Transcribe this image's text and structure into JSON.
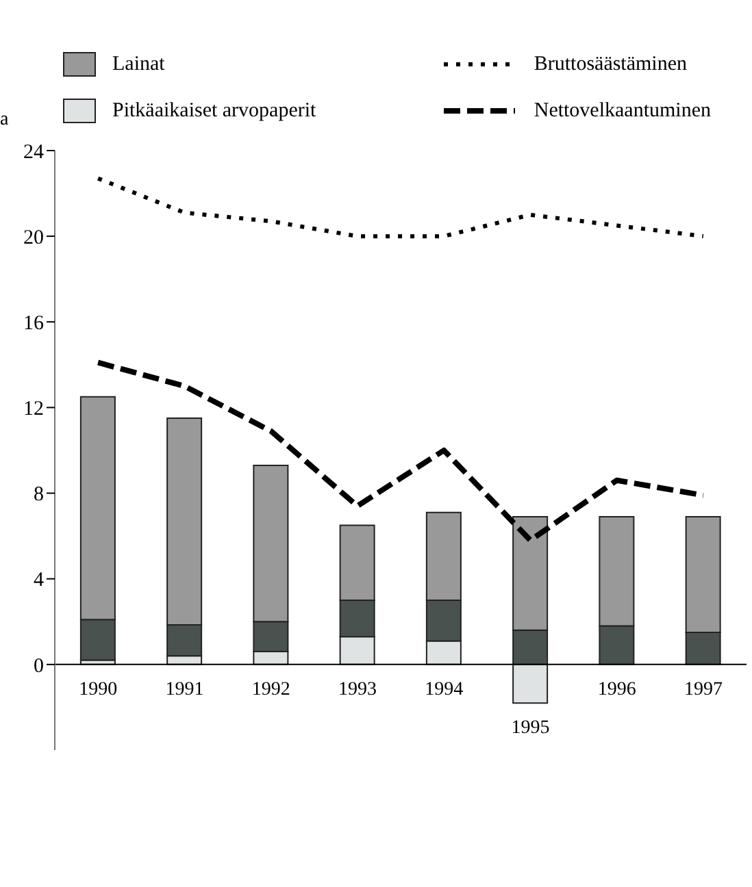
{
  "chart_data": {
    "type": "bar",
    "ylabel": "a",
    "stacked": true,
    "categories": [
      "1990",
      "1991",
      "1992",
      "1993",
      "1994",
      "1995",
      "1996",
      "1997"
    ],
    "series": [
      {
        "name": "Pitkäaikaiset arvopaperit",
        "color": "#e0e3e3",
        "values": [
          0.2,
          0.4,
          0.6,
          1.3,
          1.1,
          -1.8,
          0,
          0
        ]
      },
      {
        "color": "#4a5250",
        "values": [
          1.9,
          1.45,
          1.4,
          1.7,
          1.9,
          1.6,
          1.8,
          1.5
        ]
      },
      {
        "name": "Lainat",
        "color": "#999999",
        "values": [
          10.4,
          9.65,
          7.3,
          3.5,
          4.1,
          5.3,
          5.1,
          5.4
        ]
      },
      {
        "name": "Bruttosäästäminen",
        "type": "line",
        "line_style": "dotted",
        "color": "#000000",
        "values": [
          22.7,
          21.1,
          20.7,
          20.0,
          20.0,
          21.0,
          20.5,
          20.0
        ]
      },
      {
        "name": "Nettovelkaantuminen",
        "type": "line",
        "line_style": "dashed",
        "color": "#000000",
        "values": [
          14.1,
          13.0,
          10.9,
          7.4,
          10.0,
          5.8,
          8.6,
          7.9
        ]
      }
    ],
    "ylim": [
      -4,
      24
    ],
    "yticks": [
      0,
      4,
      8,
      12,
      16,
      20,
      24
    ],
    "legend": "top",
    "marker": "none"
  }
}
